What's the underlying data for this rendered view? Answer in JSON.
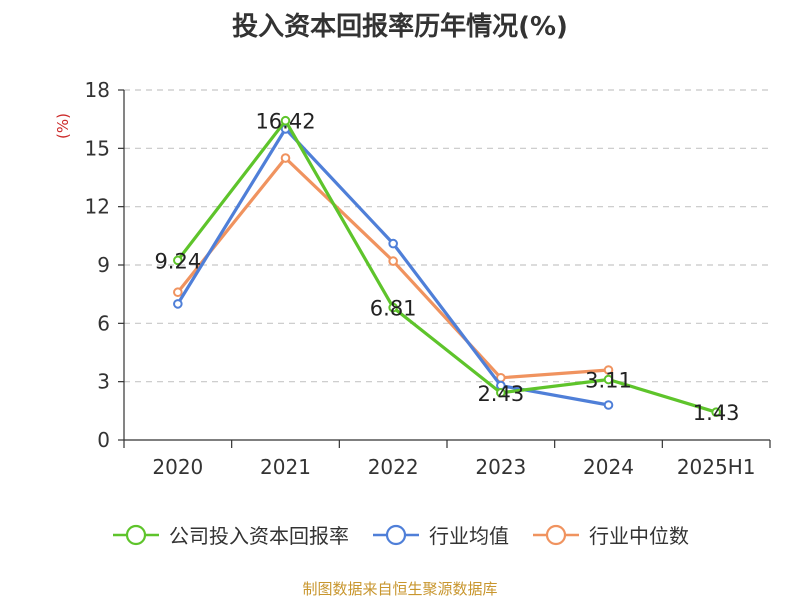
{
  "chart_data": {
    "type": "line",
    "title": "投入资本回报率历年情况(%)",
    "ylabel": "(%)",
    "xlabel": "",
    "categories": [
      "2020",
      "2021",
      "2022",
      "2023",
      "2024",
      "2025H1"
    ],
    "ylim": [
      0,
      18
    ],
    "yticks": [
      0,
      3,
      6,
      9,
      12,
      15,
      18
    ],
    "grid": true,
    "legend_position": "bottom",
    "series": [
      {
        "name": "公司投入资本回报率",
        "color": "#5ec42b",
        "values": [
          9.24,
          16.42,
          6.81,
          2.43,
          3.11,
          1.43
        ],
        "labels": [
          "9.24",
          "16.42",
          "6.81",
          "2.43",
          "3.11",
          "1.43"
        ]
      },
      {
        "name": "行业均值",
        "color": "#4f7fd8",
        "values": [
          7.0,
          16.0,
          10.1,
          2.8,
          1.8,
          null
        ]
      },
      {
        "name": "行业中位数",
        "color": "#f0935f",
        "values": [
          7.6,
          14.5,
          9.2,
          3.2,
          3.6,
          null
        ]
      }
    ]
  },
  "source": "制图数据来自恒生聚源数据库"
}
